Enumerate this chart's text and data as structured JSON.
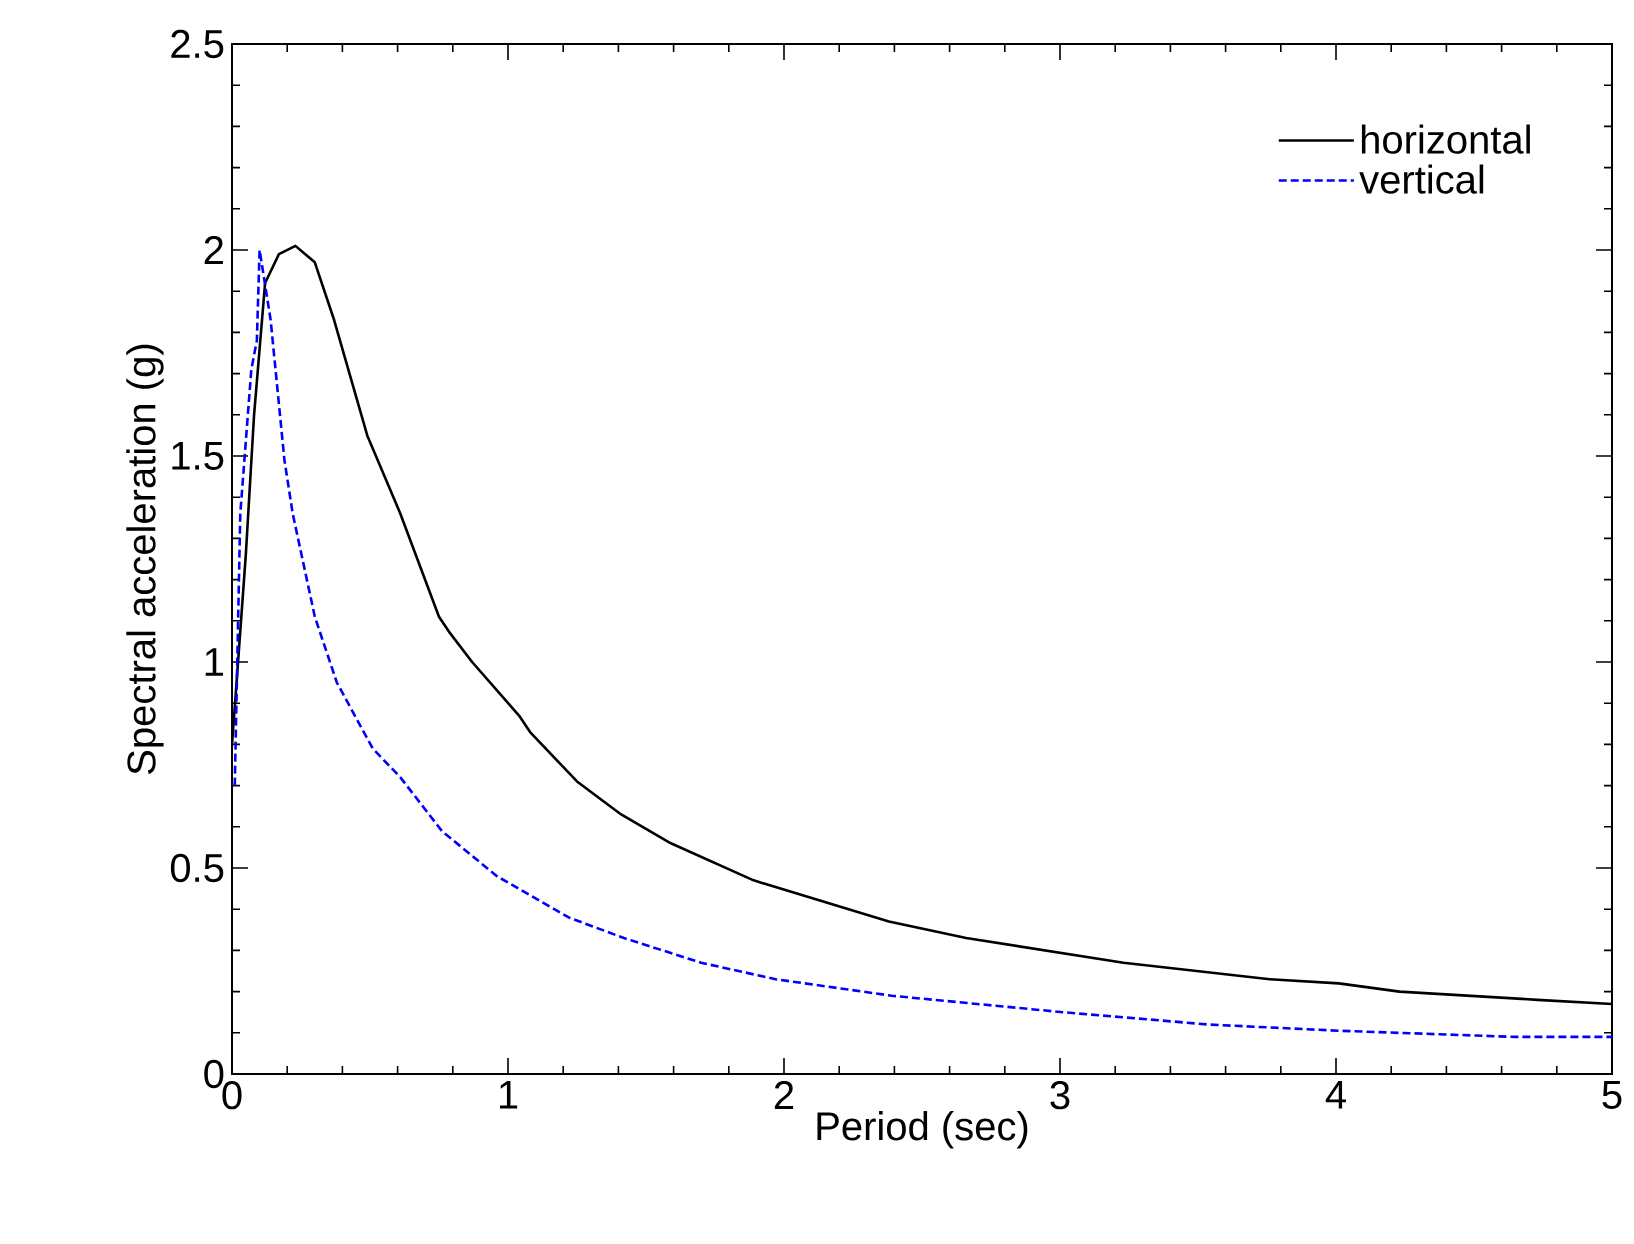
{
  "chart_data": {
    "type": "line",
    "xlabel": "Period (sec)",
    "ylabel": "Spectral acceleration (g)",
    "xlim": [
      0,
      5
    ],
    "ylim": [
      0,
      2.5
    ],
    "xticks": [
      0,
      1,
      2,
      3,
      4,
      5
    ],
    "yticks": [
      0,
      0.5,
      1,
      1.5,
      2,
      2.5
    ],
    "legend": "top right",
    "grid": false,
    "series": [
      {
        "name": "horizontal",
        "color": "#000000",
        "line_style": "solid",
        "x": [
          0,
          0.01,
          0.05,
          0.08,
          0.12,
          0.17,
          0.23,
          0.3,
          0.37,
          0.49,
          0.61,
          0.75,
          0.79,
          0.87,
          1.04,
          1.08,
          1.25,
          1.41,
          1.59,
          1.89,
          2.38,
          2.66,
          3.23,
          3.76,
          4.01,
          4.23,
          4.73,
          5.0
        ],
        "values": [
          0.8,
          0.89,
          1.26,
          1.6,
          1.92,
          1.99,
          2.01,
          1.97,
          1.83,
          1.55,
          1.36,
          1.11,
          1.07,
          1.0,
          0.87,
          0.83,
          0.71,
          0.63,
          0.56,
          0.47,
          0.37,
          0.33,
          0.27,
          0.23,
          0.22,
          0.2,
          0.18,
          0.17
        ]
      },
      {
        "name": "vertical",
        "color": "#0000ff",
        "line_style": "dashed",
        "x": [
          0.01,
          0.03,
          0.07,
          0.09,
          0.1,
          0.14,
          0.19,
          0.22,
          0.3,
          0.38,
          0.51,
          0.61,
          0.76,
          0.96,
          1.22,
          1.42,
          1.7,
          1.97,
          2.39,
          3.01,
          3.54,
          4.01,
          4.65,
          5.0
        ],
        "values": [
          0.7,
          1.36,
          1.71,
          1.78,
          2.0,
          1.83,
          1.49,
          1.36,
          1.11,
          0.95,
          0.79,
          0.72,
          0.59,
          0.48,
          0.38,
          0.33,
          0.27,
          0.23,
          0.19,
          0.15,
          0.12,
          0.105,
          0.09,
          0.09
        ]
      }
    ]
  }
}
